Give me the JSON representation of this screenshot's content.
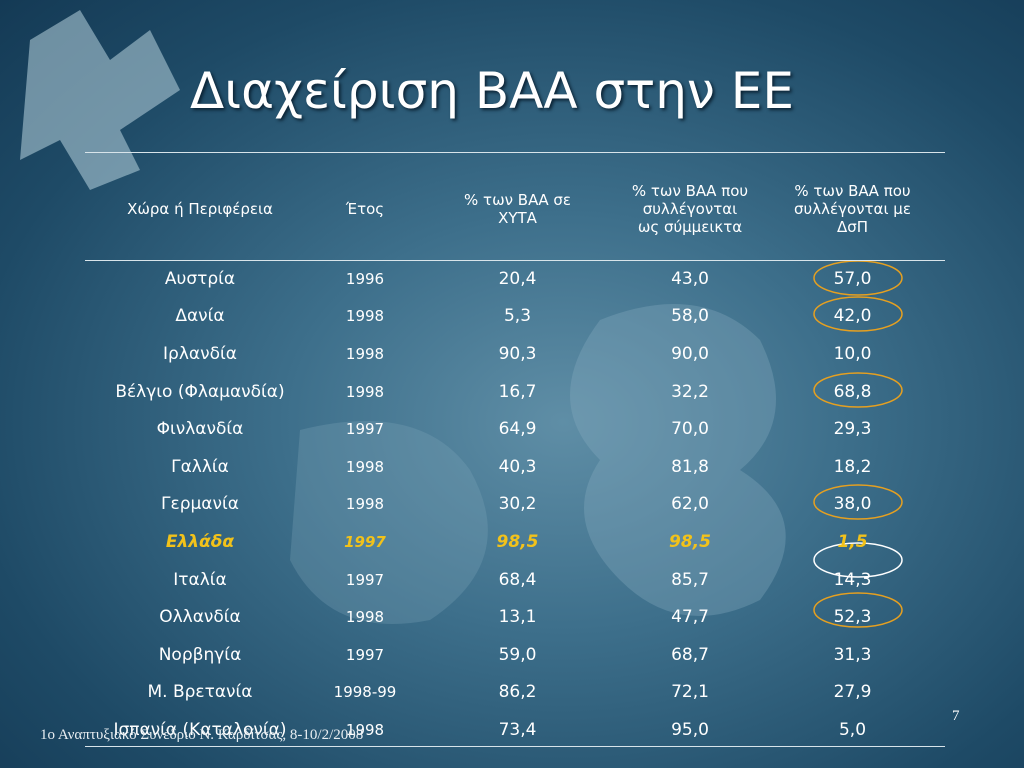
{
  "title": "Διαχείριση ΒΑΑ στην ΕΕ",
  "table": {
    "header": [
      "Χώρα ή Περιφέρεια",
      "Έτος",
      "% των ΒΑΑ σε ΧΥΤΑ",
      "% των ΒΑΑ που συλλέγονται ως σύμμεικτα",
      "% των ΒΑΑ που συλλέγονται με ΔσΠ"
    ],
    "rows": [
      [
        "Αυστρία",
        "1996",
        "20,4",
        "43,0",
        "57,0"
      ],
      [
        "Δανία",
        "1998",
        "5,3",
        "58,0",
        "42,0"
      ],
      [
        "Ιρλανδία",
        "1998",
        "90,3",
        "90,0",
        "10,0"
      ],
      [
        "Βέλγιο (Φλαμανδία)",
        "1998",
        "16,7",
        "32,2",
        "68,8"
      ],
      [
        "Φινλανδία",
        "1997",
        "64,9",
        "70,0",
        "29,3"
      ],
      [
        "Γαλλία",
        "1998",
        "40,3",
        "81,8",
        "18,2"
      ],
      [
        "Γερμανία",
        "1998",
        "30,2",
        "62,0",
        "38,0"
      ],
      [
        "Ελλάδα",
        "1997",
        "98,5",
        "98,5",
        "1,5"
      ],
      [
        "Ιταλία",
        "1997",
        "68,4",
        "85,7",
        "14,3"
      ],
      [
        "Ολλανδία",
        "1998",
        "13,1",
        "47,7",
        "52,3"
      ],
      [
        "Νορβηγία",
        "1997",
        "59,0",
        "68,7",
        "31,3"
      ],
      [
        "Μ. Βρετανία",
        "1998-99",
        "86,2",
        "72,1",
        "27,9"
      ],
      [
        "Ισπανία (Καταλονία)",
        "1998",
        "73,4",
        "95,0",
        "5,0"
      ]
    ]
  },
  "footer": "1ο Αναπτυξιακό Συνέδριο Ν. Καρδίτσας, 8-10/2/2008",
  "page_number": "7"
}
